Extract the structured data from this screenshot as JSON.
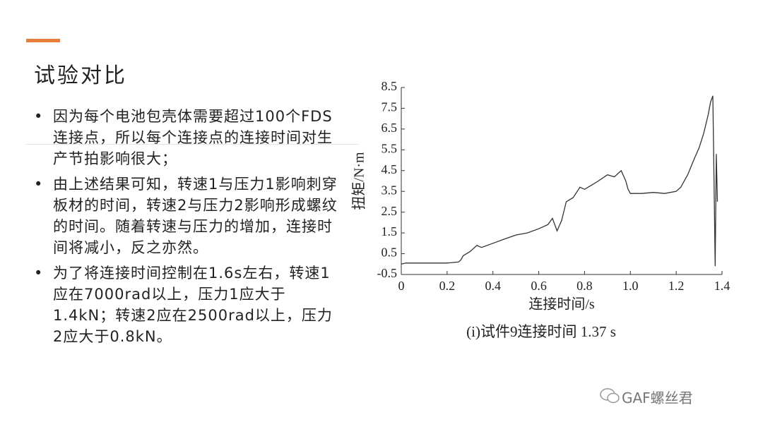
{
  "title": "试验对比",
  "bullets": [
    "因为每个电池包壳体需要超过100个FDS连接点，所以每个连接点的连接时间对生产节拍影响很大；",
    "由上述结果可知，转速1与压力1影响刺穿板材的时间，转速2与压力2影响形成螺纹的时间。随着转速与压力的增加，连接时间将减小，反之亦然。",
    "为了将连接时间控制在1.6s左右，转速1应在7000rad以上，压力1应大于1.4kN；转速2应在2500rad以上，压力2应大于0.8kN。"
  ],
  "watermark": "GAF螺丝君",
  "chart_data": {
    "type": "line",
    "xlabel": "连接时间/s",
    "ylabel": "扭矩/N·m",
    "caption": "(i)试件9连接时间 1.37 s",
    "color": "#333333",
    "x": [
      0,
      0.02,
      0.05,
      0.1,
      0.15,
      0.2,
      0.25,
      0.26,
      0.27,
      0.3,
      0.33,
      0.35,
      0.4,
      0.45,
      0.5,
      0.55,
      0.6,
      0.64,
      0.66,
      0.68,
      0.7,
      0.72,
      0.75,
      0.78,
      0.8,
      0.83,
      0.86,
      0.9,
      0.93,
      0.96,
      0.98,
      0.99,
      1.0,
      1.05,
      1.1,
      1.15,
      1.2,
      1.22,
      1.25,
      1.28,
      1.3,
      1.32,
      1.34,
      1.35,
      1.36,
      1.365,
      1.37,
      1.375,
      1.38
    ],
    "values": [
      0.0,
      0.05,
      0.05,
      0.05,
      0.05,
      0.05,
      0.1,
      0.2,
      0.4,
      0.6,
      0.9,
      0.8,
      1.0,
      1.2,
      1.4,
      1.5,
      1.7,
      1.9,
      2.2,
      1.6,
      2.1,
      3.0,
      3.2,
      3.7,
      3.6,
      3.8,
      4.0,
      4.3,
      4.2,
      4.5,
      4.0,
      3.6,
      3.4,
      3.4,
      3.45,
      3.4,
      3.5,
      3.7,
      4.3,
      5.1,
      5.6,
      6.3,
      7.2,
      7.8,
      8.1,
      4.0,
      -0.1,
      5.3,
      3.0
    ],
    "xlim": [
      0,
      1.4
    ],
    "xticks": [
      0,
      0.2,
      0.4,
      0.6,
      0.8,
      {
        "value": 1,
        "label": "1.0"
      },
      1.2,
      1.4
    ],
    "ylim": [
      -0.5,
      8.5
    ],
    "yticks": [
      -0.5,
      0.5,
      1.5,
      2.5,
      3.5,
      4.5,
      5.5,
      6.5,
      7.5,
      8.5
    ]
  }
}
